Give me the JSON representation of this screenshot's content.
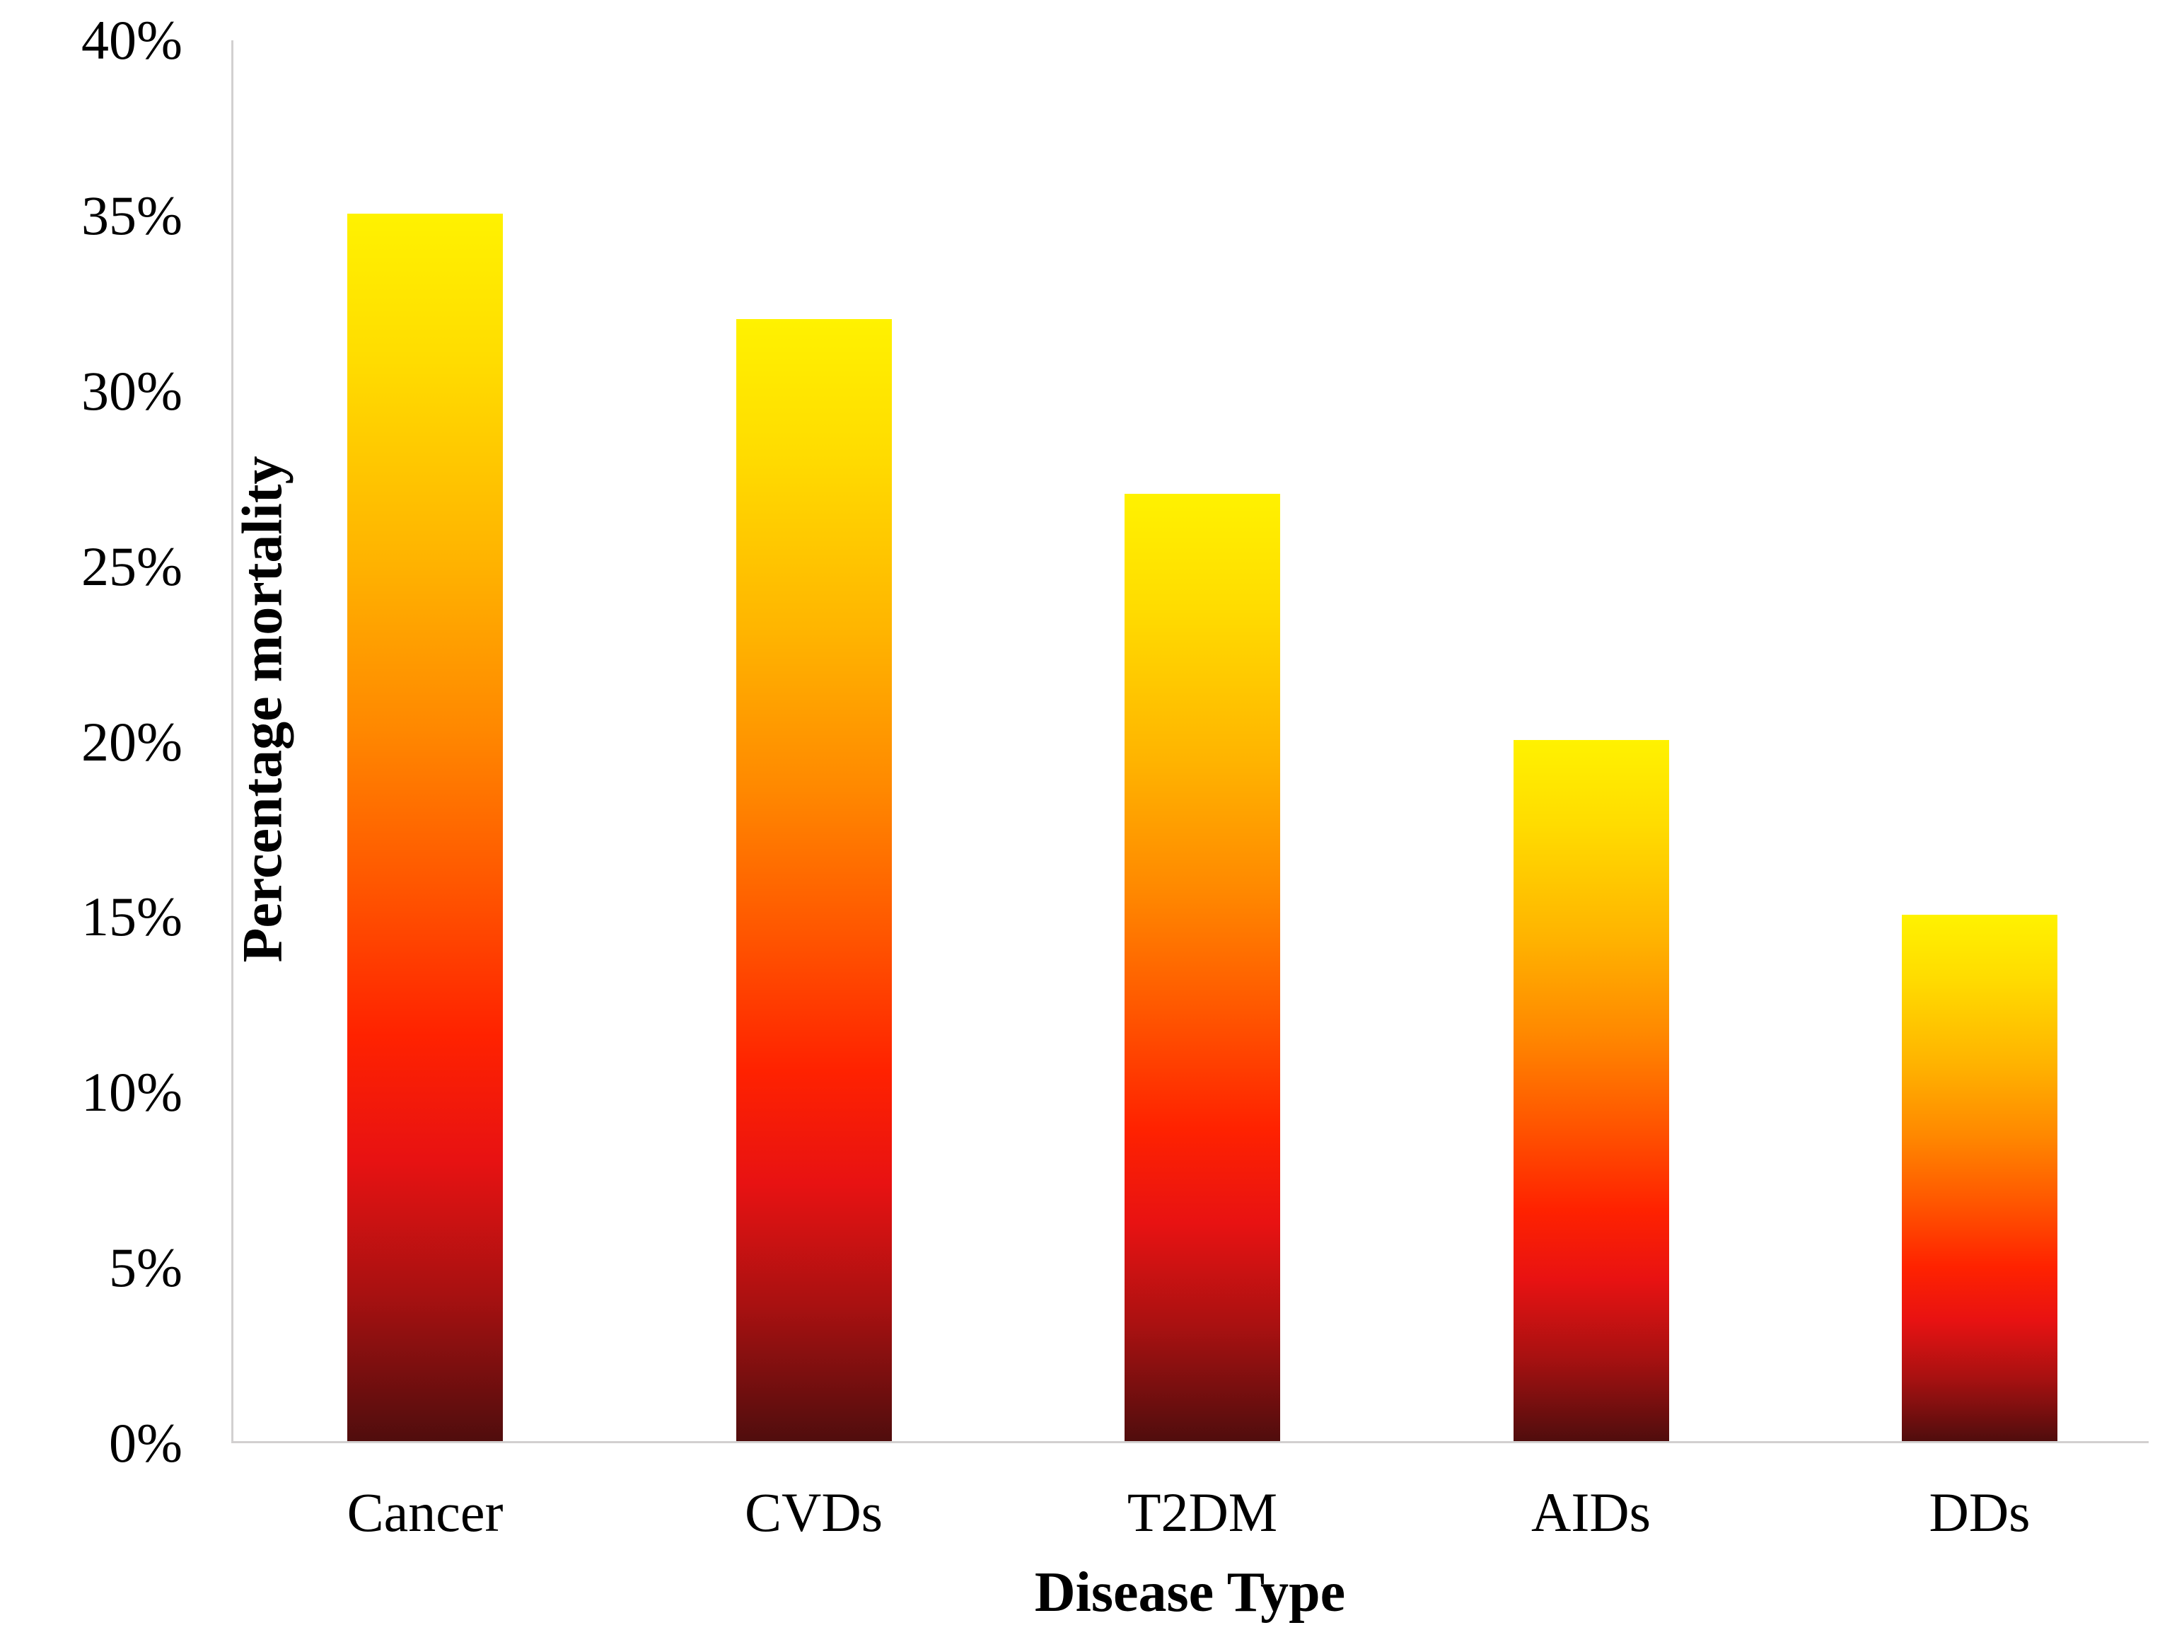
{
  "chart_data": {
    "type": "bar",
    "title": "",
    "xlabel": "Disease Type",
    "ylabel": "Percentage mortality",
    "categories": [
      "Cancer",
      "CVDs",
      "T2DM",
      "AIDs",
      "DDs"
    ],
    "values": [
      35,
      32,
      27,
      20,
      15
    ],
    "value_unit": "%",
    "ylim": [
      0,
      40
    ],
    "ytick_step": 5,
    "ytick_labels": [
      "0%",
      "5%",
      "10%",
      "15%",
      "20%",
      "25%",
      "30%",
      "35%",
      "40%"
    ],
    "grid": false,
    "legend": false,
    "background_color": "#ffffff",
    "axis_line_color": "#d2d0d0",
    "text_color": "#000000",
    "bar_gradient_top_to_bottom": [
      "#fff200",
      "#ffdc00",
      "#ffb400",
      "#ff8800",
      "#ff5500",
      "#ff2200",
      "#e81212",
      "#a81111",
      "#500d0d"
    ]
  }
}
